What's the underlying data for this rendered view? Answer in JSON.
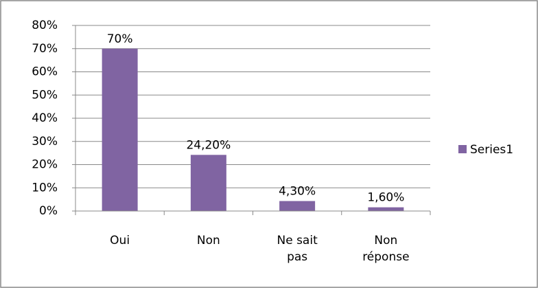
{
  "chart_data": {
    "type": "bar",
    "categories": [
      "Oui",
      "Non",
      "Ne sait pas",
      "Non réponse"
    ],
    "series": [
      {
        "name": "Series1",
        "color": "#8064a2",
        "values": [
          70,
          24.2,
          4.3,
          1.6
        ],
        "value_labels": [
          "70%",
          "24,20%",
          "4,30%",
          "1,60%"
        ]
      }
    ],
    "ylim": [
      0,
      80
    ],
    "yticks": [
      {
        "value": 0,
        "label": "0%"
      },
      {
        "value": 10,
        "label": "10%"
      },
      {
        "value": 20,
        "label": "20%"
      },
      {
        "value": 30,
        "label": "30%"
      },
      {
        "value": 40,
        "label": "40%"
      },
      {
        "value": 50,
        "label": "50%"
      },
      {
        "value": 60,
        "label": "60%"
      },
      {
        "value": 70,
        "label": "70%"
      },
      {
        "value": 80,
        "label": "80%"
      }
    ],
    "grid": true,
    "legend": "right"
  }
}
